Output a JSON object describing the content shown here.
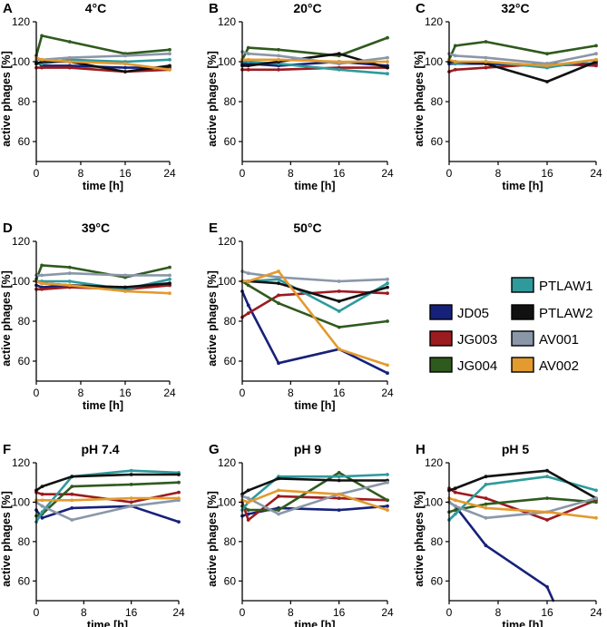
{
  "figure": {
    "series_styles": [
      {
        "name": "JD05",
        "color": "#16217a"
      },
      {
        "name": "JG003",
        "color": "#9b1b1f"
      },
      {
        "name": "JG004",
        "color": "#2f5a1e"
      },
      {
        "name": "PTLAW1",
        "color": "#2f9a9c"
      },
      {
        "name": "PTLAW2",
        "color": "#111111"
      },
      {
        "name": "AV001",
        "color": "#8a97a8"
      },
      {
        "name": "AV002",
        "color": "#e39a2f"
      }
    ]
  },
  "chart_data": [
    {
      "panel": "A",
      "title": "4°C",
      "type": "line",
      "xlabel": "time [h]",
      "ylabel": "active phages [%]",
      "x_ticks": [
        0,
        8,
        16,
        24
      ],
      "y_ticks": [
        60,
        80,
        100,
        120
      ],
      "xlim": [
        0,
        24
      ],
      "ylim": [
        50,
        120
      ],
      "series": [
        {
          "name": "JD05",
          "x": [
            0,
            1,
            6,
            16,
            24
          ],
          "y": [
            100,
            98,
            98,
            97,
            97
          ]
        },
        {
          "name": "JG003",
          "x": [
            0,
            1,
            6,
            16,
            24
          ],
          "y": [
            97,
            97,
            97,
            95,
            96
          ]
        },
        {
          "name": "JG004",
          "x": [
            0,
            1,
            6,
            16,
            24
          ],
          "y": [
            103,
            113,
            110,
            104,
            106
          ]
        },
        {
          "name": "PTLAW1",
          "x": [
            0,
            1,
            6,
            16,
            24
          ],
          "y": [
            99,
            99,
            101,
            100,
            101
          ]
        },
        {
          "name": "PTLAW2",
          "x": [
            0,
            1,
            6,
            16,
            24
          ],
          "y": [
            99,
            100,
            100,
            95,
            98
          ]
        },
        {
          "name": "AV001",
          "x": [
            0,
            1,
            6,
            16,
            24
          ],
          "y": [
            101,
            101,
            102,
            103,
            104
          ]
        },
        {
          "name": "AV002",
          "x": [
            0,
            1,
            6,
            16,
            24
          ],
          "y": [
            102,
            101,
            100,
            99,
            96
          ]
        }
      ]
    },
    {
      "panel": "B",
      "title": "20°C",
      "type": "line",
      "xlabel": "time [h]",
      "ylabel": "active phages [%]",
      "x_ticks": [
        0,
        8,
        16,
        24
      ],
      "y_ticks": [
        60,
        80,
        100,
        120
      ],
      "xlim": [
        0,
        24
      ],
      "ylim": [
        50,
        120
      ],
      "series": [
        {
          "name": "JD05",
          "x": [
            0,
            1,
            6,
            16,
            24
          ],
          "y": [
            99,
            99,
            98,
            100,
            98
          ]
        },
        {
          "name": "JG003",
          "x": [
            0,
            1,
            6,
            16,
            24
          ],
          "y": [
            96,
            96,
            96,
            97,
            97
          ]
        },
        {
          "name": "JG004",
          "x": [
            0,
            1,
            6,
            16,
            24
          ],
          "y": [
            101,
            107,
            106,
            103,
            112
          ]
        },
        {
          "name": "PTLAW1",
          "x": [
            0,
            1,
            6,
            16,
            24
          ],
          "y": [
            100,
            100,
            99,
            96,
            94
          ]
        },
        {
          "name": "PTLAW2",
          "x": [
            0,
            1,
            6,
            16,
            24
          ],
          "y": [
            98,
            98,
            100,
            104,
            97
          ]
        },
        {
          "name": "AV001",
          "x": [
            0,
            1,
            6,
            16,
            24
          ],
          "y": [
            105,
            104,
            103,
            99,
            102
          ]
        },
        {
          "name": "AV002",
          "x": [
            0,
            1,
            6,
            16,
            24
          ],
          "y": [
            101,
            101,
            101,
            100,
            100
          ]
        }
      ]
    },
    {
      "panel": "C",
      "title": "32°C",
      "type": "line",
      "xlabel": "time [h]",
      "ylabel": "active phages [%]",
      "x_ticks": [
        0,
        8,
        16,
        24
      ],
      "y_ticks": [
        60,
        80,
        100,
        120
      ],
      "xlim": [
        0,
        24
      ],
      "ylim": [
        50,
        120
      ],
      "series": [
        {
          "name": "JD05",
          "x": [
            0,
            1,
            6,
            16,
            24
          ],
          "y": [
            99,
            99,
            99,
            98,
            99
          ]
        },
        {
          "name": "JG003",
          "x": [
            0,
            1,
            6,
            16,
            24
          ],
          "y": [
            95,
            96,
            97,
            99,
            98
          ]
        },
        {
          "name": "JG004",
          "x": [
            0,
            1,
            6,
            16,
            24
          ],
          "y": [
            101,
            108,
            110,
            104,
            108
          ]
        },
        {
          "name": "PTLAW1",
          "x": [
            0,
            1,
            6,
            16,
            24
          ],
          "y": [
            100,
            99,
            100,
            97,
            101
          ]
        },
        {
          "name": "PTLAW2",
          "x": [
            0,
            1,
            6,
            16,
            24
          ],
          "y": [
            100,
            100,
            99,
            90,
            100
          ]
        },
        {
          "name": "AV001",
          "x": [
            0,
            1,
            6,
            16,
            24
          ],
          "y": [
            104,
            103,
            102,
            99,
            104
          ]
        },
        {
          "name": "AV002",
          "x": [
            0,
            1,
            6,
            16,
            24
          ],
          "y": [
            101,
            100,
            100,
            98,
            101
          ]
        }
      ]
    },
    {
      "panel": "D",
      "title": "39°C",
      "type": "line",
      "xlabel": "time [h]",
      "ylabel": "active phages [%]",
      "x_ticks": [
        0,
        8,
        16,
        24
      ],
      "y_ticks": [
        60,
        80,
        100,
        120
      ],
      "xlim": [
        0,
        24
      ],
      "ylim": [
        50,
        120
      ],
      "series": [
        {
          "name": "JD05",
          "x": [
            0,
            1,
            6,
            16,
            24
          ],
          "y": [
            98,
            97,
            98,
            97,
            98
          ]
        },
        {
          "name": "JG003",
          "x": [
            0,
            1,
            6,
            16,
            24
          ],
          "y": [
            96,
            96,
            97,
            96,
            98
          ]
        },
        {
          "name": "JG004",
          "x": [
            0,
            1,
            6,
            16,
            24
          ],
          "y": [
            101,
            108,
            107,
            102,
            107
          ]
        },
        {
          "name": "PTLAW1",
          "x": [
            0,
            1,
            6,
            16,
            24
          ],
          "y": [
            100,
            100,
            100,
            96,
            101
          ]
        },
        {
          "name": "PTLAW2",
          "x": [
            0,
            1,
            6,
            16,
            24
          ],
          "y": [
            100,
            99,
            98,
            97,
            99
          ]
        },
        {
          "name": "AV001",
          "x": [
            0,
            1,
            6,
            16,
            24
          ],
          "y": [
            103,
            103,
            104,
            103,
            103
          ]
        },
        {
          "name": "AV002",
          "x": [
            0,
            1,
            6,
            16,
            24
          ],
          "y": [
            100,
            99,
            98,
            95,
            94
          ]
        }
      ]
    },
    {
      "panel": "E",
      "title": "50°C",
      "type": "line",
      "xlabel": "time [h]",
      "ylabel": "active phages [%]",
      "x_ticks": [
        0,
        8,
        16,
        24
      ],
      "y_ticks": [
        60,
        80,
        100,
        120
      ],
      "xlim": [
        0,
        24
      ],
      "ylim": [
        50,
        120
      ],
      "series": [
        {
          "name": "JD05",
          "x": [
            0,
            1,
            6,
            16,
            24
          ],
          "y": [
            95,
            88,
            59,
            66,
            54
          ]
        },
        {
          "name": "JG003",
          "x": [
            0,
            1,
            6,
            16,
            24
          ],
          "y": [
            82,
            84,
            93,
            95,
            94
          ]
        },
        {
          "name": "JG004",
          "x": [
            0,
            1,
            6,
            16,
            24
          ],
          "y": [
            100,
            98,
            89,
            77,
            80
          ]
        },
        {
          "name": "PTLAW1",
          "x": [
            0,
            1,
            6,
            16,
            24
          ],
          "y": [
            100,
            100,
            101,
            85,
            99
          ]
        },
        {
          "name": "PTLAW2",
          "x": [
            0,
            1,
            6,
            16,
            24
          ],
          "y": [
            100,
            100,
            99,
            90,
            97
          ]
        },
        {
          "name": "AV001",
          "x": [
            0,
            1,
            6,
            16,
            24
          ],
          "y": [
            105,
            104,
            102,
            100,
            101
          ]
        },
        {
          "name": "AV002",
          "x": [
            0,
            1,
            6,
            16,
            24
          ],
          "y": [
            100,
            100,
            105,
            66,
            58
          ]
        }
      ]
    },
    {
      "panel": "F",
      "title": "pH 7.4",
      "type": "line",
      "xlabel": "time [h]",
      "ylabel": "active phages [%]",
      "x_ticks": [
        0,
        8,
        16,
        24
      ],
      "y_ticks": [
        60,
        80,
        100,
        120
      ],
      "xlim": [
        0,
        24
      ],
      "ylim": [
        50,
        120
      ],
      "series": [
        {
          "name": "JD05",
          "x": [
            0,
            1,
            6,
            16,
            24
          ],
          "y": [
            96,
            92,
            97,
            98,
            90
          ]
        },
        {
          "name": "JG003",
          "x": [
            0,
            1,
            6,
            16,
            24
          ],
          "y": [
            105,
            104,
            104,
            100,
            105
          ]
        },
        {
          "name": "JG004",
          "x": [
            0,
            1,
            6,
            16,
            24
          ],
          "y": [
            93,
            94,
            108,
            109,
            110
          ]
        },
        {
          "name": "PTLAW1",
          "x": [
            0,
            1,
            6,
            16,
            24
          ],
          "y": [
            90,
            95,
            113,
            116,
            115
          ]
        },
        {
          "name": "PTLAW2",
          "x": [
            0,
            1,
            6,
            16,
            24
          ],
          "y": [
            106,
            108,
            113,
            114,
            114
          ]
        },
        {
          "name": "AV001",
          "x": [
            0,
            1,
            6,
            16,
            24
          ],
          "y": [
            100,
            98,
            91,
            98,
            101
          ]
        },
        {
          "name": "AV002",
          "x": [
            0,
            1,
            6,
            16,
            24
          ],
          "y": [
            101,
            101,
            101,
            102,
            102
          ]
        }
      ]
    },
    {
      "panel": "G",
      "title": "pH 9",
      "type": "line",
      "xlabel": "time [h]",
      "ylabel": "active phages [%]",
      "x_ticks": [
        0,
        8,
        16,
        24
      ],
      "y_ticks": [
        60,
        80,
        100,
        120
      ],
      "xlim": [
        0,
        24
      ],
      "ylim": [
        50,
        120
      ],
      "series": [
        {
          "name": "JD05",
          "x": [
            0,
            1,
            6,
            16,
            24
          ],
          "y": [
            93,
            94,
            97,
            96,
            98
          ]
        },
        {
          "name": "JG003",
          "x": [
            0,
            1,
            6,
            16,
            24
          ],
          "y": [
            100,
            91,
            103,
            102,
            101
          ]
        },
        {
          "name": "JG004",
          "x": [
            0,
            1,
            6,
            16,
            24
          ],
          "y": [
            98,
            96,
            96,
            115,
            101
          ]
        },
        {
          "name": "PTLAW1",
          "x": [
            0,
            1,
            6,
            16,
            24
          ],
          "y": [
            96,
            100,
            113,
            113,
            114
          ]
        },
        {
          "name": "PTLAW2",
          "x": [
            0,
            1,
            6,
            16,
            24
          ],
          "y": [
            104,
            106,
            112,
            111,
            111
          ]
        },
        {
          "name": "AV001",
          "x": [
            0,
            1,
            6,
            16,
            24
          ],
          "y": [
            103,
            102,
            94,
            104,
            110
          ]
        },
        {
          "name": "AV002",
          "x": [
            0,
            1,
            6,
            16,
            24
          ],
          "y": [
            101,
            100,
            106,
            104,
            96
          ]
        }
      ]
    },
    {
      "panel": "H",
      "title": "pH 5",
      "type": "line",
      "xlabel": "time [h]",
      "ylabel": "active phages [%]",
      "x_ticks": [
        0,
        8,
        16,
        24
      ],
      "y_ticks": [
        60,
        80,
        100,
        120
      ],
      "xlim": [
        0,
        24
      ],
      "ylim": [
        50,
        120
      ],
      "series": [
        {
          "name": "JD05",
          "x": [
            0,
            1,
            6,
            16,
            17
          ],
          "y": [
            100,
            98,
            78,
            57,
            50
          ]
        },
        {
          "name": "JG003",
          "x": [
            0,
            1,
            6,
            16,
            24
          ],
          "y": [
            107,
            105,
            102,
            91,
            101
          ]
        },
        {
          "name": "JG004",
          "x": [
            0,
            1,
            6,
            16,
            24
          ],
          "y": [
            95,
            96,
            99,
            102,
            100
          ]
        },
        {
          "name": "PTLAW1",
          "x": [
            0,
            1,
            6,
            16,
            24
          ],
          "y": [
            91,
            94,
            109,
            113,
            106
          ]
        },
        {
          "name": "PTLAW2",
          "x": [
            0,
            1,
            6,
            16,
            24
          ],
          "y": [
            106,
            107,
            113,
            116,
            102
          ]
        },
        {
          "name": "AV001",
          "x": [
            0,
            1,
            6,
            16,
            24
          ],
          "y": [
            100,
            98,
            92,
            95,
            102
          ]
        },
        {
          "name": "AV002",
          "x": [
            0,
            1,
            6,
            16,
            24
          ],
          "y": [
            102,
            101,
            97,
            95,
            92
          ]
        }
      ]
    }
  ]
}
